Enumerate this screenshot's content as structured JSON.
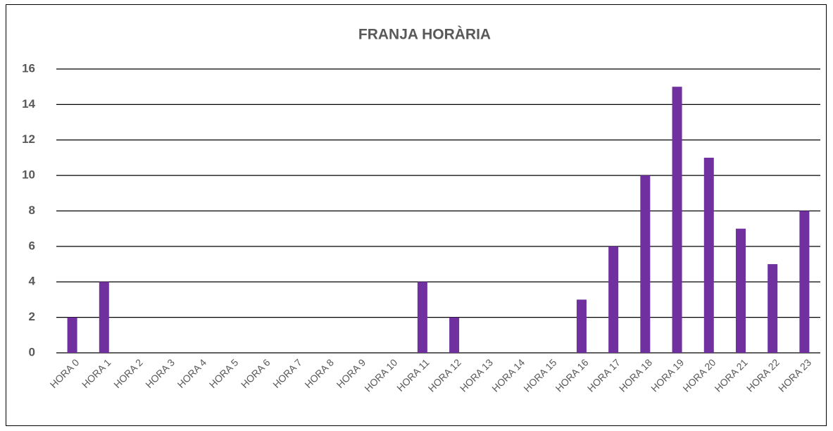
{
  "chart_data": {
    "type": "bar",
    "title": "FRANJA HORÀRIA",
    "categories": [
      "HORA 0",
      "HORA 1",
      "HORA 2",
      "HORA 3",
      "HORA 4",
      "HORA 5",
      "HORA 6",
      "HORA 7",
      "HORA 8",
      "HORA 9",
      "HORA 10",
      "HORA 11",
      "HORA 12",
      "HORA 13",
      "HORA 14",
      "HORA 15",
      "HORA 16",
      "HORA 17",
      "HORA 18",
      "HORA 19",
      "HORA 20",
      "HORA 21",
      "HORA 22",
      "HORA 23"
    ],
    "values": [
      2,
      4,
      0,
      0,
      0,
      0,
      0,
      0,
      0,
      0,
      0,
      4,
      2,
      0,
      0,
      0,
      3,
      6,
      10,
      15,
      11,
      7,
      5,
      8
    ],
    "color": "#7030a0",
    "ylim": [
      0,
      16
    ],
    "yticks": [
      0,
      2,
      4,
      6,
      8,
      10,
      12,
      14,
      16
    ],
    "grid": true
  }
}
